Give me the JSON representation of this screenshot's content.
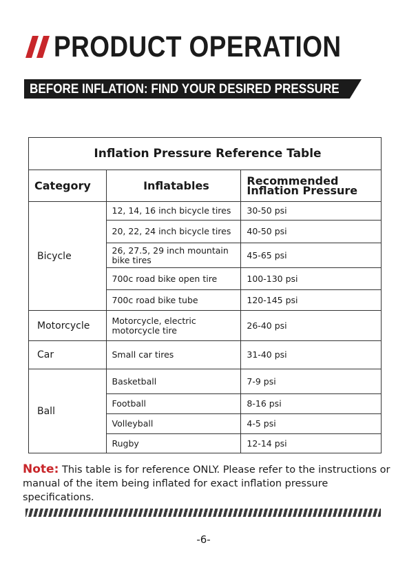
{
  "header": {
    "title": "PRODUCT OPERATION",
    "banner": "BEFORE INFLATION: FIND YOUR DESIRED PRESSURE"
  },
  "table": {
    "title": "Inflation Pressure Reference Table",
    "headers": [
      "Category",
      "Inflatables",
      "Recommended Inflation Pressure"
    ],
    "groups": [
      {
        "category": "Bicycle",
        "items": [
          [
            "12, 14, 16 inch bicycle tires",
            "30-50 psi"
          ],
          [
            "20, 22, 24 inch bicycle tires",
            "40-50 psi"
          ],
          [
            "26, 27.5, 29 inch mountain bike tires",
            "45-65 psi"
          ],
          [
            "700c road bike open tire",
            "100-130 psi"
          ],
          [
            "700c road bike tube",
            "120-145 psi"
          ]
        ]
      },
      {
        "category": "Motorcycle",
        "items": [
          [
            "Motorcycle, electric motorcycle tire",
            "26-40 psi"
          ]
        ]
      },
      {
        "category": "Car",
        "items": [
          [
            "Small car tires",
            "31-40 psi"
          ]
        ]
      },
      {
        "category": "Ball",
        "items": [
          [
            "Basketball",
            "7-9 psi"
          ],
          [
            "Football",
            "8-16 psi"
          ],
          [
            "Volleyball",
            "4-5 psi"
          ],
          [
            "Rugby",
            "12-14 psi"
          ]
        ]
      }
    ]
  },
  "note": {
    "label": "Note:",
    "text": "This table is for reference ONLY. Please refer to the instructions or manual of the item being inflated for exact inflation pressure specifications."
  },
  "footer": {
    "page": "-6-"
  }
}
